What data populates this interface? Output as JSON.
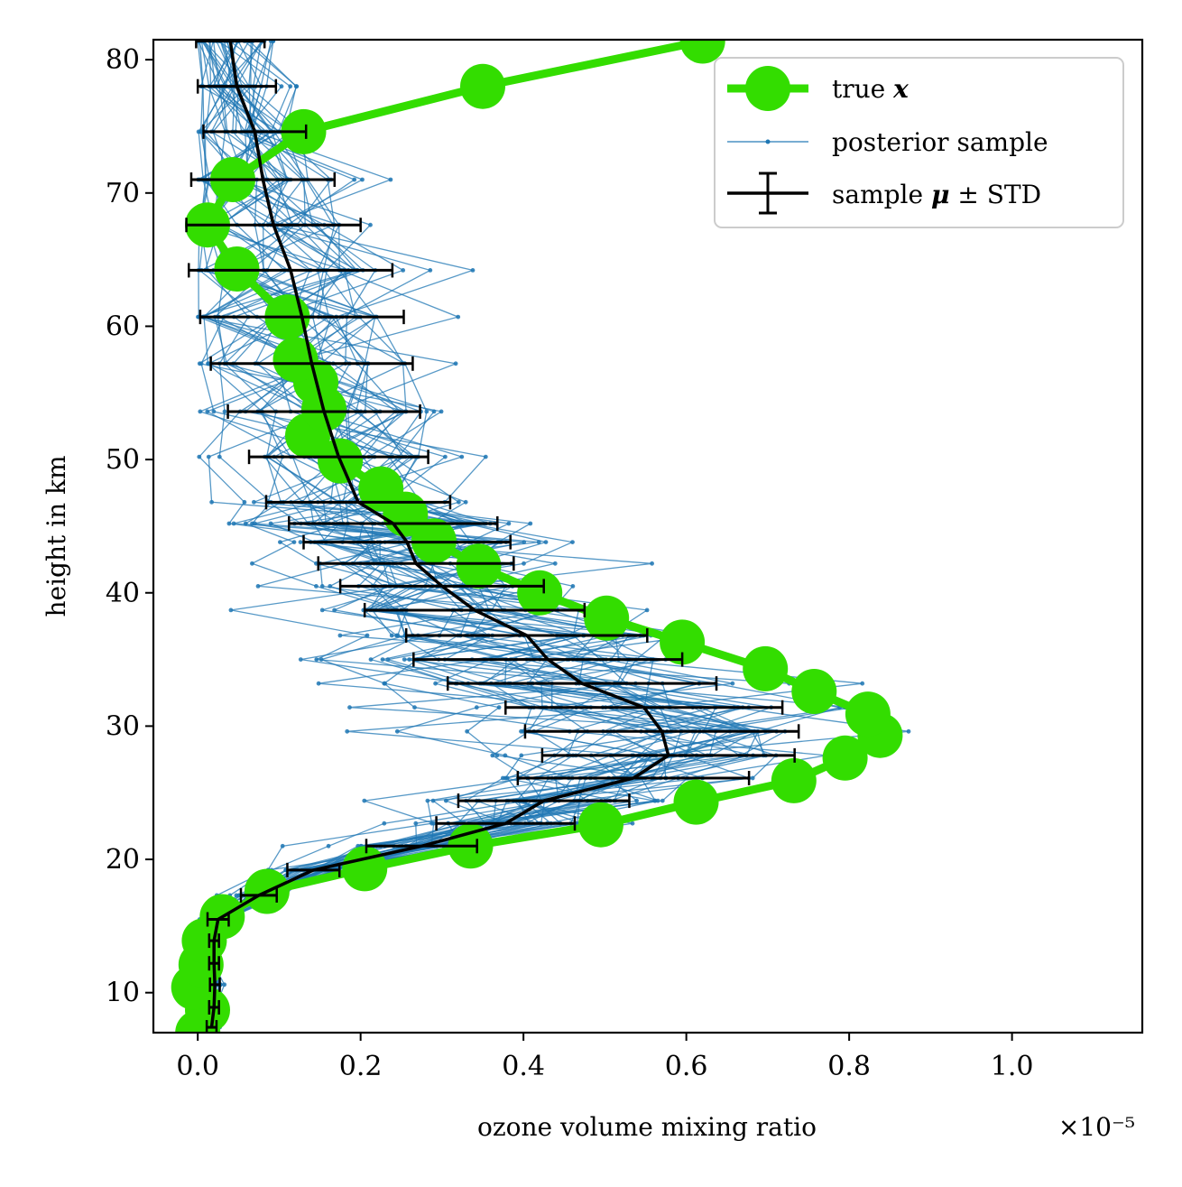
{
  "chart_data": {
    "type": "line",
    "xlabel": "ozone volume mixing ratio",
    "ylabel": "height in km",
    "x_offset_label": "×10⁻⁵",
    "x_scale_exponent": -5,
    "xlim": [
      -0.0545,
      1.16
    ],
    "ylim": [
      7,
      81.5
    ],
    "xticks": [
      0.0,
      0.2,
      0.4,
      0.6,
      0.8,
      1.0
    ],
    "xtick_labels": [
      "0.0",
      "0.2",
      "0.4",
      "0.6",
      "0.8",
      "1.0"
    ],
    "yticks": [
      10,
      20,
      30,
      40,
      50,
      60,
      70,
      80
    ],
    "ytick_labels": [
      "10",
      "20",
      "30",
      "40",
      "50",
      "60",
      "70",
      "80"
    ],
    "grid": false,
    "legend_position": "top-right",
    "legend": [
      {
        "label": "true",
        "math": "x",
        "kind": "line-marker"
      },
      {
        "label": "posterior sample",
        "math": "",
        "kind": "thin-line"
      },
      {
        "label": "sample",
        "math": "μ",
        "suffix": "± STD",
        "kind": "errorbar"
      }
    ],
    "colors": {
      "true": "#33dd00",
      "posterior": "#1f77b4",
      "mean": "#000000"
    },
    "series": [
      {
        "name": "true x",
        "y": [
          7.0,
          8.7,
          10.4,
          12.1,
          13.9,
          15.7,
          17.6,
          19.3,
          21.0,
          22.6,
          24.3,
          25.9,
          27.6,
          29.3,
          30.9,
          32.6,
          34.3,
          36.3,
          38.1,
          40.0,
          42.0,
          43.9,
          45.9,
          47.8,
          49.9,
          51.8,
          53.8,
          55.8,
          57.5,
          60.7,
          64.3,
          67.6,
          71.0,
          74.6,
          78.0,
          81.4
        ],
        "x": [
          0.0,
          0.012,
          -0.005,
          0.004,
          0.008,
          0.03,
          0.085,
          0.205,
          0.335,
          0.495,
          0.612,
          0.732,
          0.795,
          0.838,
          0.823,
          0.757,
          0.697,
          0.595,
          0.502,
          0.42,
          0.345,
          0.29,
          0.255,
          0.225,
          0.175,
          0.135,
          0.155,
          0.145,
          0.12,
          0.11,
          0.048,
          0.012,
          0.043,
          0.13,
          0.35,
          0.62
        ]
      },
      {
        "name": "sample μ ± STD",
        "y": [
          7.4,
          8.9,
          10.6,
          12.2,
          13.9,
          15.5,
          17.3,
          19.2,
          21.0,
          22.7,
          24.4,
          26.1,
          27.8,
          29.6,
          31.4,
          33.2,
          35.0,
          36.8,
          38.7,
          40.5,
          42.2,
          43.8,
          45.2,
          46.8,
          50.2,
          53.6,
          57.2,
          60.7,
          64.2,
          67.6,
          71.0,
          74.6,
          78.0,
          81.4
        ],
        "x": [
          0.017,
          0.02,
          0.021,
          0.02,
          0.02,
          0.025,
          0.075,
          0.142,
          0.275,
          0.378,
          0.425,
          0.535,
          0.578,
          0.57,
          0.548,
          0.472,
          0.43,
          0.404,
          0.34,
          0.3,
          0.268,
          0.257,
          0.24,
          0.197,
          0.173,
          0.155,
          0.14,
          0.128,
          0.114,
          0.093,
          0.08,
          0.07,
          0.048,
          0.04
        ],
        "std": [
          0.006,
          0.006,
          0.006,
          0.006,
          0.006,
          0.013,
          0.022,
          0.032,
          0.068,
          0.085,
          0.105,
          0.142,
          0.155,
          0.168,
          0.17,
          0.165,
          0.165,
          0.148,
          0.135,
          0.125,
          0.12,
          0.127,
          0.128,
          0.113,
          0.11,
          0.118,
          0.124,
          0.125,
          0.125,
          0.107,
          0.088,
          0.063,
          0.048,
          0.042
        ]
      }
    ],
    "posterior_sample_count": 40
  }
}
